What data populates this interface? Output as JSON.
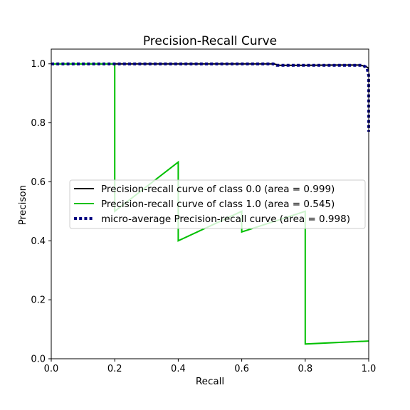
{
  "chart_data": {
    "type": "line",
    "title": "Precision-Recall Curve",
    "xlabel": "Recall",
    "ylabel": "Precison",
    "xlim": [
      0,
      1
    ],
    "ylim": [
      0,
      1.05
    ],
    "xticks": [
      0.0,
      0.2,
      0.4,
      0.6,
      0.8,
      1.0
    ],
    "xtick_labels": [
      "0.0",
      "0.2",
      "0.4",
      "0.6",
      "0.8",
      "1.0"
    ],
    "yticks": [
      0.0,
      0.2,
      0.4,
      0.6,
      0.8,
      1.0
    ],
    "ytick_labels": [
      "0.0",
      "0.2",
      "0.4",
      "0.6",
      "0.8",
      "1.0"
    ],
    "grid": false,
    "legend_position": "center",
    "series": [
      {
        "name": "Precision-recall curve of class 0.0 (area = 0.999)",
        "color": "#000000",
        "style": "solid",
        "x": [
          0.0,
          0.2,
          0.4,
          0.6,
          0.7,
          0.72,
          0.8,
          0.9,
          0.97,
          0.99,
          1.0
        ],
        "y": [
          1.0,
          1.0,
          1.0,
          1.0,
          1.0,
          0.995,
          0.995,
          0.996,
          0.996,
          0.992,
          0.985
        ]
      },
      {
        "name": "Precision-recall curve of class 1.0 (area = 0.545)",
        "color": "#00c000",
        "style": "solid",
        "x": [
          0.0,
          0.2,
          0.2,
          0.4,
          0.4,
          0.6,
          0.6,
          0.8,
          0.8,
          1.0
        ],
        "y": [
          1.0,
          1.0,
          0.5,
          0.667,
          0.4,
          0.5,
          0.43,
          0.5,
          0.05,
          0.06
        ]
      },
      {
        "name": "micro-average Precision-recall curve (area = 0.998)",
        "color": "#000080",
        "style": "dotted",
        "x": [
          0.0,
          0.3,
          0.5,
          0.7,
          0.71,
          0.8,
          0.9,
          0.98,
          0.99,
          0.995,
          1.0,
          1.0,
          1.0
        ],
        "y": [
          1.0,
          1.0,
          1.0,
          1.0,
          0.995,
          0.995,
          0.995,
          0.995,
          0.99,
          0.985,
          0.96,
          0.85,
          0.77
        ]
      }
    ]
  }
}
